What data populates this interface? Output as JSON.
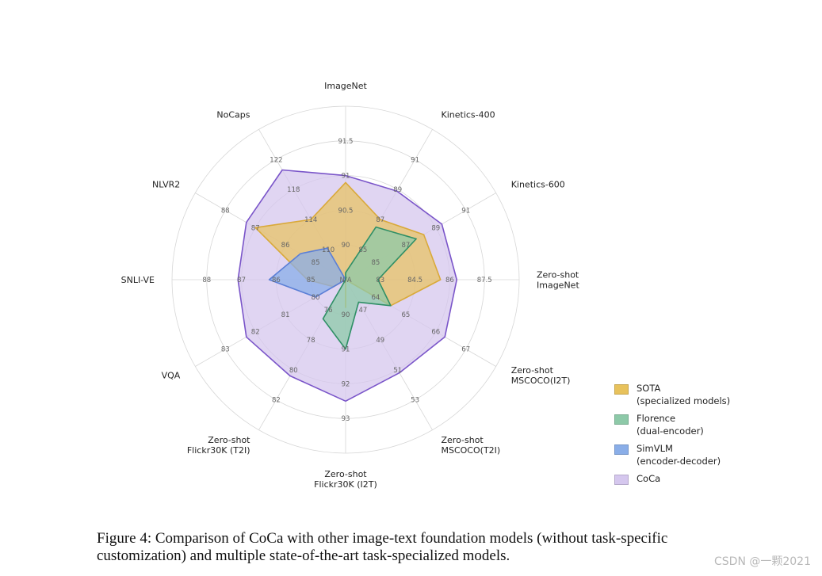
{
  "chart_data": {
    "type": "radar",
    "ring_count": 5,
    "axes": [
      {
        "name": "ImageNet",
        "ticks": [
          "90",
          "90.5",
          "91",
          "91.5"
        ]
      },
      {
        "name": "Kinetics-400",
        "ticks": [
          "85",
          "87",
          "89",
          "91"
        ]
      },
      {
        "name": "Kinetics-600",
        "ticks": [
          "85",
          "87",
          "89",
          "91"
        ]
      },
      {
        "name": "Zero-shot\nImageNet",
        "ticks": [
          "83",
          "84.5",
          "86",
          "87.5"
        ]
      },
      {
        "name": "Zero-shot\nMSCOCO(I2T)",
        "ticks": [
          "64",
          "65",
          "66",
          "67"
        ]
      },
      {
        "name": "Zero-shot\nMSCOCO(T2I)",
        "ticks": [
          "47",
          "49",
          "51",
          "53"
        ]
      },
      {
        "name": "Zero-shot\nFlickr30K (I2T)",
        "ticks": [
          "90",
          "91",
          "92",
          "93"
        ]
      },
      {
        "name": "Zero-shot\nFlickr30K (T2I)",
        "ticks": [
          "76",
          "78",
          "80",
          "82"
        ]
      },
      {
        "name": "VQA",
        "ticks": [
          "80",
          "81",
          "82",
          "83"
        ]
      },
      {
        "name": "SNLI-VE",
        "ticks": [
          "85",
          "86",
          "87",
          "88"
        ]
      },
      {
        "name": "NLVR2",
        "ticks": [
          "85",
          "86",
          "87",
          "88"
        ]
      },
      {
        "name": "NoCaps",
        "ticks": [
          "110",
          "114",
          "118",
          "122"
        ]
      }
    ],
    "center_label": "N/A",
    "series": [
      {
        "name": "SOTA\n(specialized models)",
        "color": "#e8c25c",
        "stroke": "#d9a93a",
        "values": [
          90.9,
          87.0,
          88.2,
          85.6,
          64.5,
          45.0,
          89.8,
          74.0,
          79.4,
          85.1,
          87.0,
          114.0
        ]
      },
      {
        "name": "Florence\n(dual-encoder)",
        "color": "#8dc9a8",
        "stroke": "#2f8f66",
        "values": [
          89.6,
          86.5,
          87.7,
          82.9,
          64.5,
          46.5,
          91.0,
          76.6,
          null,
          null,
          null,
          null
        ]
      },
      {
        "name": "SimVLM\n(encoder-decoder)",
        "color": "#8aaee8",
        "stroke": "#5b7fd6",
        "values": [
          null,
          null,
          null,
          null,
          null,
          null,
          null,
          null,
          80.0,
          86.2,
          85.5,
          110.2
        ]
      },
      {
        "name": "CoCa",
        "color": "#d5c7ee",
        "stroke": "#7a55c9",
        "values": [
          91.0,
          88.9,
          89.4,
          86.3,
          66.3,
          51.2,
          92.5,
          80.4,
          82.3,
          87.1,
          87.3,
          120.6
        ]
      }
    ]
  },
  "caption": "Figure 4: Comparison of CoCa with other image-text foundation models (without task-specific customization) and multiple state-of-the-art task-specialized models.",
  "watermark": "CSDN @一颗2021"
}
